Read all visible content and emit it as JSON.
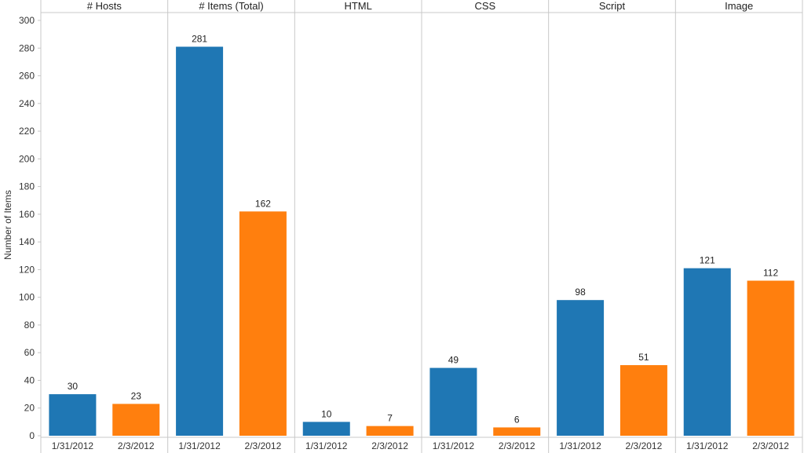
{
  "chart_data": {
    "type": "bar",
    "ylabel": "Number of Items",
    "ylim": [
      0,
      300
    ],
    "yticks": [
      0,
      20,
      40,
      60,
      80,
      100,
      120,
      140,
      160,
      180,
      200,
      220,
      240,
      260,
      280,
      300
    ],
    "grid": false,
    "categories": [
      "1/31/2012",
      "2/3/2012"
    ],
    "series_colors": [
      "#1f77b4",
      "#ff7f0e"
    ],
    "panels": [
      {
        "title": "# Hosts",
        "values": [
          30,
          23
        ]
      },
      {
        "title": "# Items (Total)",
        "values": [
          281,
          162
        ]
      },
      {
        "title": "HTML",
        "values": [
          10,
          7
        ]
      },
      {
        "title": "CSS",
        "values": [
          49,
          6
        ]
      },
      {
        "title": "Script",
        "values": [
          98,
          51
        ]
      },
      {
        "title": "Image",
        "values": [
          121,
          112
        ]
      }
    ]
  }
}
